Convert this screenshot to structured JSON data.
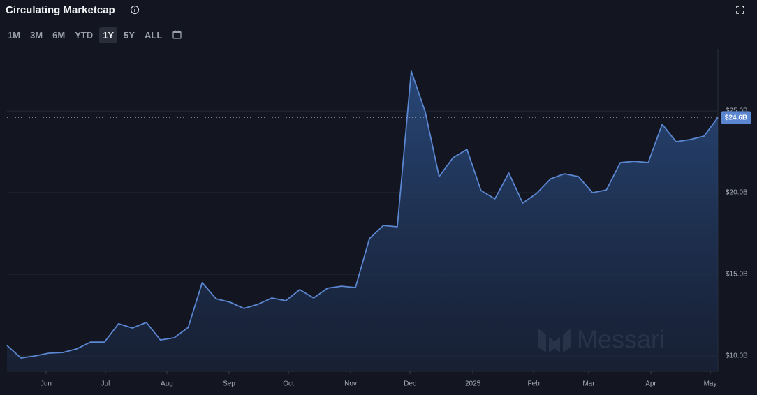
{
  "header": {
    "title": "Circulating Marketcap",
    "ranges": [
      "1M",
      "3M",
      "6M",
      "YTD",
      "1Y",
      "5Y",
      "ALL"
    ],
    "selected_range": "1Y"
  },
  "watermark": "Messari",
  "chart_data": {
    "type": "area",
    "color": "#5b86d1",
    "values": [
      10.64,
      9.87,
      10.0,
      10.17,
      10.21,
      10.43,
      10.85,
      10.85,
      11.97,
      11.71,
      12.05,
      10.98,
      11.11,
      11.75,
      14.49,
      13.5,
      13.29,
      12.91,
      13.16,
      13.55,
      13.38,
      14.06,
      13.55,
      14.15,
      14.27,
      14.19,
      17.18,
      17.99,
      17.91,
      27.44,
      24.96,
      20.98,
      22.14,
      22.65,
      20.13,
      19.62,
      21.2,
      19.36,
      19.96,
      20.85,
      21.15,
      20.98,
      20.0,
      20.17,
      21.84,
      21.92,
      21.84,
      24.19,
      23.12,
      23.25,
      23.46,
      24.6
    ],
    "xlim": [
      0,
      51
    ],
    "xticks": [
      {
        "value": 2.8,
        "label": "Jun"
      },
      {
        "value": 7.06,
        "label": "Jul"
      },
      {
        "value": 11.47,
        "label": "Aug"
      },
      {
        "value": 15.93,
        "label": "Sep"
      },
      {
        "value": 20.19,
        "label": "Oct"
      },
      {
        "value": 24.65,
        "label": "Nov"
      },
      {
        "value": 28.91,
        "label": "Dec"
      },
      {
        "value": 33.42,
        "label": "2025"
      },
      {
        "value": 37.78,
        "label": "Feb"
      },
      {
        "value": 41.73,
        "label": "Mar"
      },
      {
        "value": 46.19,
        "label": "Apr"
      },
      {
        "value": 50.45,
        "label": "May"
      }
    ],
    "ylim": [
      9.06,
      28.38
    ],
    "yticks": [
      {
        "value": 10,
        "label": "$10.0B"
      },
      {
        "value": 15,
        "label": "$15.0B"
      },
      {
        "value": 20,
        "label": "$20.0B"
      },
      {
        "value": 25,
        "label": "$25.0B"
      }
    ],
    "grid": true,
    "current": {
      "value": 24.6,
      "label": "$24.6B"
    }
  }
}
